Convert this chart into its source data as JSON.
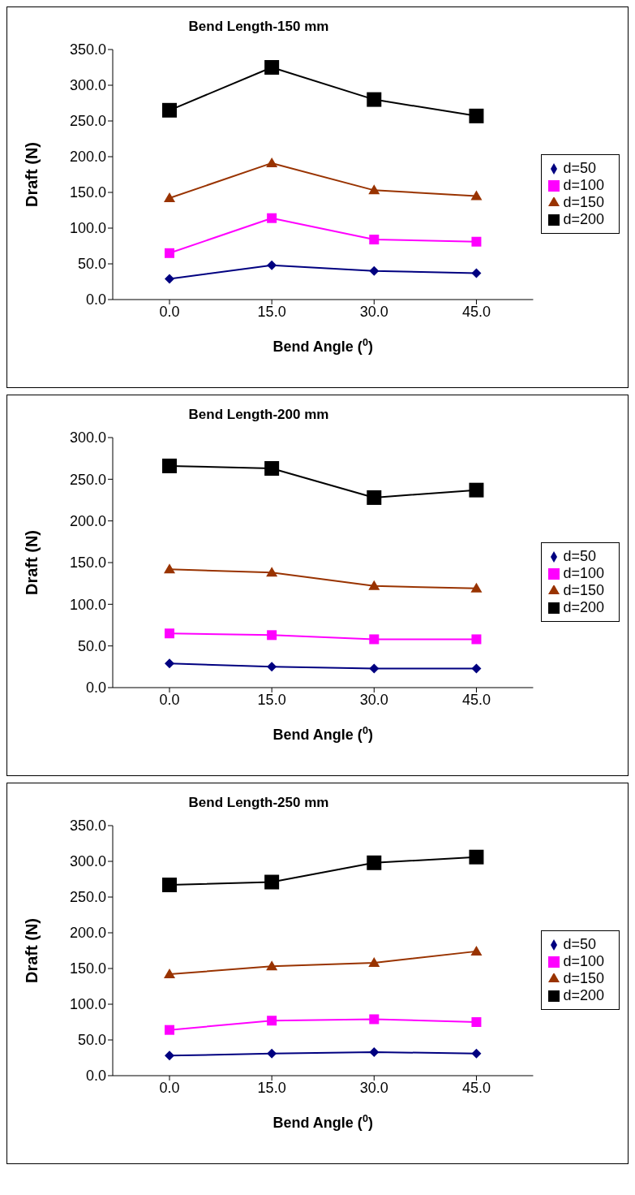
{
  "chart_data": [
    {
      "type": "line",
      "title": "Bend Length-150 mm",
      "xlabel": "Bend Angle ($^{0}$)",
      "ylabel": "Draft (N)",
      "categories": [
        "0.0",
        "15.0",
        "30.0",
        "45.0"
      ],
      "series": [
        {
          "name": "d=50",
          "color": "#000080",
          "marker": "diamond",
          "values": [
            29,
            48,
            40,
            37
          ]
        },
        {
          "name": "d=100",
          "color": "#ff00ff",
          "marker": "square",
          "values": [
            65,
            114,
            84,
            81
          ]
        },
        {
          "name": "d=150",
          "color": "#993300",
          "marker": "triangle",
          "values": [
            142,
            191,
            153,
            145
          ]
        },
        {
          "name": "d=200",
          "color": "#000000",
          "marker": "square",
          "values": [
            265,
            325,
            280,
            257
          ]
        }
      ],
      "ylim": [
        0,
        350
      ],
      "yticks": [
        {
          "value": 0,
          "label": "0.0"
        },
        {
          "value": 50,
          "label": "50.0"
        },
        {
          "value": 100,
          "label": "100.0"
        },
        {
          "value": 150,
          "label": "150.0"
        },
        {
          "value": 200,
          "label": "200.0"
        },
        {
          "value": 250,
          "label": "250.0"
        },
        {
          "value": 300,
          "label": "300.0"
        },
        {
          "value": 350,
          "label": "350.0"
        }
      ],
      "legend": "right",
      "line_style": "solid"
    },
    {
      "type": "line",
      "title": "Bend Length-200 mm",
      "xlabel": "Bend Angle ($^{0}$)",
      "ylabel": "Draft (N)",
      "categories": [
        "0.0",
        "15.0",
        "30.0",
        "45.0"
      ],
      "series": [
        {
          "name": "d=50",
          "color": "#000080",
          "marker": "diamond",
          "values": [
            29,
            25,
            23,
            23
          ]
        },
        {
          "name": "d=100",
          "color": "#ff00ff",
          "marker": "square",
          "values": [
            65,
            63,
            58,
            58
          ]
        },
        {
          "name": "d=150",
          "color": "#993300",
          "marker": "triangle",
          "values": [
            142,
            138,
            122,
            119
          ]
        },
        {
          "name": "d=200",
          "color": "#000000",
          "marker": "square",
          "values": [
            266,
            263,
            228,
            237
          ]
        }
      ],
      "ylim": [
        0,
        300
      ],
      "yticks": [
        {
          "value": 0,
          "label": "0.0"
        },
        {
          "value": 50,
          "label": "50.0"
        },
        {
          "value": 100,
          "label": "100.0"
        },
        {
          "value": 150,
          "label": "150.0"
        },
        {
          "value": 200,
          "label": "200.0"
        },
        {
          "value": 250,
          "label": "250.0"
        },
        {
          "value": 300,
          "label": "300.0"
        }
      ],
      "legend": "right",
      "line_style": "solid"
    },
    {
      "type": "line",
      "title": "Bend Length-250 mm",
      "xlabel": "Bend Angle ($^{0}$)",
      "ylabel": "Draft (N)",
      "categories": [
        "0.0",
        "15.0",
        "30.0",
        "45.0"
      ],
      "series": [
        {
          "name": "d=50",
          "color": "#000080",
          "marker": "diamond",
          "values": [
            28,
            31,
            33,
            31
          ]
        },
        {
          "name": "d=100",
          "color": "#ff00ff",
          "marker": "square",
          "values": [
            64,
            77,
            79,
            75
          ]
        },
        {
          "name": "d=150",
          "color": "#993300",
          "marker": "triangle",
          "values": [
            142,
            153,
            158,
            174
          ]
        },
        {
          "name": "d=200",
          "color": "#000000",
          "marker": "square",
          "values": [
            267,
            271,
            298,
            306
          ]
        }
      ],
      "ylim": [
        0,
        350
      ],
      "yticks": [
        {
          "value": 0,
          "label": "0.0"
        },
        {
          "value": 50,
          "label": "50.0"
        },
        {
          "value": 100,
          "label": "100.0"
        },
        {
          "value": 150,
          "label": "150.0"
        },
        {
          "value": 200,
          "label": "200.0"
        },
        {
          "value": 250,
          "label": "250.0"
        },
        {
          "value": 300,
          "label": "300.0"
        },
        {
          "value": 350,
          "label": "350.0"
        }
      ],
      "legend": "right",
      "line_style": "solid"
    }
  ]
}
